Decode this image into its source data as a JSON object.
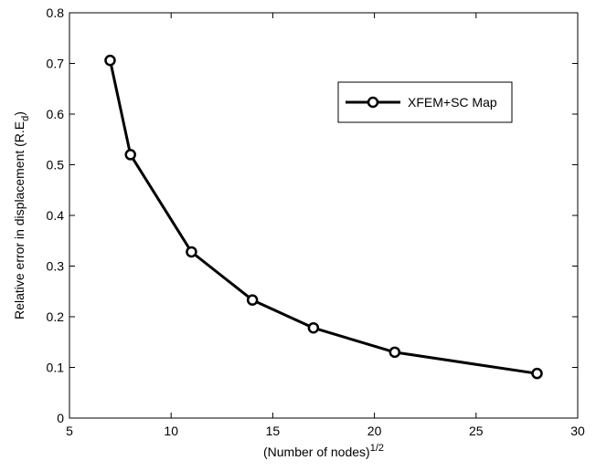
{
  "chart_data": {
    "type": "line",
    "title": "",
    "xlabel": "(Number of nodes)",
    "xlabel_superscript": "1/2",
    "ylabel": "Relative error in displacement (R.E",
    "ylabel_subscript": "d",
    "ylabel_suffix": ")",
    "xlim": [
      5,
      30
    ],
    "ylim": [
      0,
      0.8
    ],
    "xticks": [
      5,
      10,
      15,
      20,
      25,
      30
    ],
    "yticks": [
      0,
      0.1,
      0.2,
      0.3,
      0.4,
      0.5,
      0.6,
      0.7,
      0.8
    ],
    "xtick_labels": [
      "5",
      "10",
      "15",
      "20",
      "25",
      "30"
    ],
    "ytick_labels": [
      "0",
      "0.1",
      "0.2",
      "0.3",
      "0.4",
      "0.5",
      "0.6",
      "0.7",
      "0.8"
    ],
    "grid": false,
    "legend_position": "upper-right",
    "series": [
      {
        "name": "XFEM+SC Map",
        "color": "#000000",
        "marker": "circle",
        "x": [
          7,
          8,
          11,
          14,
          17,
          21,
          28
        ],
        "y": [
          0.706,
          0.52,
          0.328,
          0.233,
          0.178,
          0.13,
          0.088
        ]
      }
    ]
  }
}
